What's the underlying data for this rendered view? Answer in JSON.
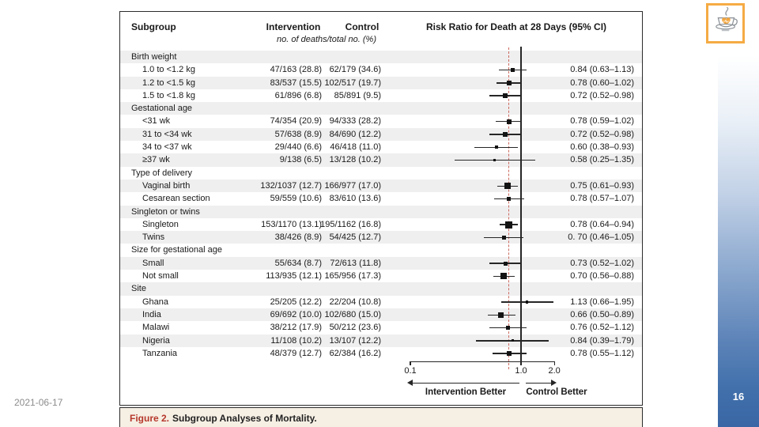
{
  "slide": {
    "date": "2021-06-17",
    "page_number": "16",
    "logo_icon": "coffee-cup-heart-icon",
    "colors": {
      "page_band_blue": "#3a66a5",
      "logo_orange": "#f5ab44",
      "stripe_gray": "#f0eff0",
      "dashed_line_red": "#cb6a5e",
      "caption_red": "#b6382c",
      "caption_beige": "#f6efe4"
    }
  },
  "figure": {
    "caption": {
      "prefix": "Figure 2.",
      "text": "Subgroup Analyses of Mortality."
    },
    "columns": {
      "subgroup": "Subgroup",
      "intervention": "Intervention",
      "control": "Control",
      "risk_ratio": "Risk Ratio for Death at 28 Days (95% CI)",
      "units": "no. of deaths/total no. (%)"
    }
  },
  "chart_data": {
    "type": "forest",
    "title": "Risk Ratio for Death at 28 Days (95% CI)",
    "x_scale": "log",
    "x_range": [
      0.1,
      2.0
    ],
    "x_ticks": [
      0.1,
      1.0,
      2.0
    ],
    "x_tick_labels": [
      "0.1",
      "1.0",
      "2.0"
    ],
    "reference_line": 1.0,
    "dashed_overall_line": 0.78,
    "direction_labels": {
      "left": "Intervention Better",
      "right": "Control Better"
    },
    "rows": [
      {
        "type": "section",
        "label": "Birth weight"
      },
      {
        "type": "item",
        "label": "1.0 to <1.2 kg",
        "intervention": "47/163 (28.8)",
        "control": "62/179 (34.6)",
        "rr": 0.84,
        "ci": [
          0.63,
          1.13
        ],
        "rr_text": "0.84 (0.63–1.13)",
        "marker": 5
      },
      {
        "type": "item",
        "label": "1.2 to <1.5 kg",
        "intervention": "83/537 (15.5)",
        "control": "102/517 (19.7)",
        "rr": 0.78,
        "ci": [
          0.6,
          1.02
        ],
        "rr_text": "0.78 (0.60–1.02)",
        "marker": 6
      },
      {
        "type": "item",
        "label": "1.5 to <1.8 kg",
        "intervention": "61/896 (6.8)",
        "control": "85/891 (9.5)",
        "rr": 0.72,
        "ci": [
          0.52,
          0.98
        ],
        "rr_text": "0.72 (0.52–0.98)",
        "marker": 6
      },
      {
        "type": "section",
        "label": "Gestational age"
      },
      {
        "type": "item",
        "label": "<31 wk",
        "intervention": "74/354 (20.9)",
        "control": "94/333 (28.2)",
        "rr": 0.78,
        "ci": [
          0.59,
          1.02
        ],
        "rr_text": "0.78 (0.59–1.02)",
        "marker": 6.5
      },
      {
        "type": "item",
        "label": "31 to <34 wk",
        "intervention": "57/638 (8.9)",
        "control": "84/690 (12.2)",
        "rr": 0.72,
        "ci": [
          0.52,
          0.98
        ],
        "rr_text": "0.72 (0.52–0.98)",
        "marker": 6
      },
      {
        "type": "item",
        "label": "34 to <37 wk",
        "intervention": "29/440 (6.6)",
        "control": "46/418 (11.0)",
        "rr": 0.6,
        "ci": [
          0.38,
          0.93
        ],
        "rr_text": "0.60 (0.38–0.93)",
        "marker": 4
      },
      {
        "type": "item",
        "label": "≥37 wk",
        "intervention": "9/138 (6.5)",
        "control": "13/128 (10.2)",
        "rr": 0.58,
        "ci": [
          0.25,
          1.35
        ],
        "rr_text": "0.58 (0.25–1.35)",
        "marker": 3
      },
      {
        "type": "section",
        "label": "Type of delivery"
      },
      {
        "type": "item",
        "label": "Vaginal birth",
        "intervention": "132/1037 (12.7)",
        "control": "166/977 (17.0)",
        "rr": 0.75,
        "ci": [
          0.61,
          0.93
        ],
        "rr_text": "0.75 (0.61–0.93)",
        "marker": 8
      },
      {
        "type": "item",
        "label": "Cesarean section",
        "intervention": "59/559 (10.6)",
        "control": "83/610 (13.6)",
        "rr": 0.78,
        "ci": [
          0.57,
          1.07
        ],
        "rr_text": "0.78 (0.57–1.07)",
        "marker": 5
      },
      {
        "type": "section",
        "label": "Singleton or twins"
      },
      {
        "type": "item",
        "label": "Singleton",
        "intervention": "153/1170 (13.1)",
        "control": "195/1162 (16.8)",
        "rr": 0.78,
        "ci": [
          0.64,
          0.94
        ],
        "rr_text": "0.78 (0.64–0.94)",
        "marker": 9
      },
      {
        "type": "item",
        "label": "Twins",
        "intervention": "38/426 (8.9)",
        "control": "54/425 (12.7)",
        "rr": 0.7,
        "ci": [
          0.46,
          1.05
        ],
        "rr_text": "0. 70 (0.46–1.05)",
        "marker": 4.5
      },
      {
        "type": "section",
        "label": "Size for gestational age"
      },
      {
        "type": "item",
        "label": "Small",
        "intervention": "55/634 (8.7)",
        "control": "72/613 (11.8)",
        "rr": 0.73,
        "ci": [
          0.52,
          1.02
        ],
        "rr_text": "0.73 (0.52–1.02)",
        "marker": 5
      },
      {
        "type": "item",
        "label": "Not small",
        "intervention": "113/935 (12.1)",
        "control": "165/956 (17.3)",
        "rr": 0.7,
        "ci": [
          0.56,
          0.88
        ],
        "rr_text": "0.70 (0.56–0.88)",
        "marker": 8
      },
      {
        "type": "section",
        "label": "Site"
      },
      {
        "type": "item",
        "label": "Ghana",
        "intervention": "25/205 (12.2)",
        "control": "22/204 (10.8)",
        "rr": 1.13,
        "ci": [
          0.66,
          1.95
        ],
        "rr_text": "1.13 (0.66–1.95)",
        "marker": 3.5
      },
      {
        "type": "item",
        "label": "India",
        "intervention": "69/692 (10.0)",
        "control": "102/680 (15.0)",
        "rr": 0.66,
        "ci": [
          0.5,
          0.89
        ],
        "rr_text": "0.66 (0.50–0.89)",
        "marker": 7
      },
      {
        "type": "item",
        "label": "Malawi",
        "intervention": "38/212 (17.9)",
        "control": "50/212 (23.6)",
        "rr": 0.76,
        "ci": [
          0.52,
          1.12
        ],
        "rr_text": "0.76 (0.52–1.12)",
        "marker": 5
      },
      {
        "type": "item",
        "label": "Nigeria",
        "intervention": "11/108 (10.2)",
        "control": "13/107 (12.2)",
        "rr": 0.84,
        "ci": [
          0.39,
          1.79
        ],
        "rr_text": "0.84 (0.39–1.79)",
        "marker": 3
      },
      {
        "type": "item",
        "label": "Tanzania",
        "intervention": "48/379 (12.7)",
        "control": "62/384 (16.2)",
        "rr": 0.78,
        "ci": [
          0.55,
          1.12
        ],
        "rr_text": "0.78 (0.55–1.12)",
        "marker": 5.5
      }
    ]
  }
}
